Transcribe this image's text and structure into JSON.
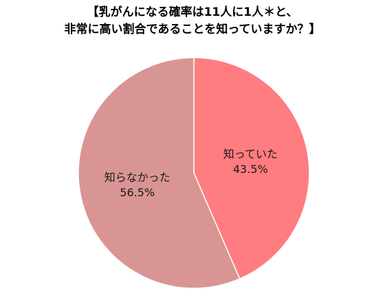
{
  "chart_data": {
    "type": "pie",
    "title_lines": [
      "【乳がんになる確率は11人に1人＊と、",
      "非常に高い割合であることを知っていますか？】"
    ],
    "slices": [
      {
        "label": "知っていた",
        "value": 43.5,
        "value_text": "43.5%",
        "color": "#FF7C80"
      },
      {
        "label": "知らなかった",
        "value": 56.5,
        "value_text": "56.5%",
        "color": "#D99594"
      }
    ],
    "start_angle": "12 o'clock",
    "direction": "clockwise",
    "slice_border_color": "#ffffff"
  }
}
